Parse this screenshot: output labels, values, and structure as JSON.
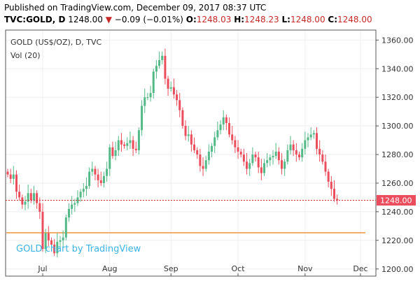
{
  "header": {
    "published": "Published on TradingView.com, December 09, 2017 08:37 UTC",
    "symbol": "TVC:GOLD, D",
    "last": "1248.00",
    "arrow": "▼",
    "change": "−0.09 (−0.01%)",
    "o_label": "O:",
    "o_value": "1248.03",
    "h_label": "H:",
    "h_value": "1248.23",
    "l_label": "L:",
    "l_value": "1248.00",
    "c_label": "C:",
    "c_value": "1248.00"
  },
  "colors": {
    "up": "#53b987",
    "down": "#eb4d5c",
    "price_line": "#c62828",
    "watermark": "#3bb3e4",
    "volume": "#f0a050"
  },
  "chart_data": {
    "type": "candlestick",
    "title": "GOLD (US$/OZ), D, TVC",
    "subtitle": "Vol (20)",
    "watermark": "GOLD chart by TradingView",
    "x_ticks": [
      "Jul",
      "Aug",
      "Sep",
      "Oct",
      "Nov",
      "Dec"
    ],
    "x_tick_index": [
      12,
      35,
      56,
      79,
      102,
      121
    ],
    "y_ticks": [
      1200.0,
      1220.0,
      1240.0,
      1260.0,
      1280.0,
      1300.0,
      1320.0,
      1340.0,
      1360.0
    ],
    "y_tick_labels": [
      "1200.00",
      "1220.00",
      "1240.00",
      "1260.00",
      "1280.00",
      "1300.00",
      "1320.00",
      "1340.00",
      "1360.00"
    ],
    "ylim": [
      1195,
      1367
    ],
    "last_price": 1248.0,
    "last_price_label": "1248.00",
    "grid": true,
    "closes": [
      1266,
      1263,
      1266,
      1254,
      1250,
      1245,
      1247,
      1253,
      1248,
      1253,
      1246,
      1240,
      1214,
      1225,
      1220,
      1217,
      1211,
      1219,
      1220,
      1222,
      1236,
      1242,
      1245,
      1246,
      1250,
      1254,
      1256,
      1258,
      1268,
      1270,
      1266,
      1262,
      1260,
      1265,
      1270,
      1285,
      1279,
      1283,
      1290,
      1287,
      1286,
      1288,
      1290,
      1284,
      1283,
      1297,
      1314,
      1320,
      1320,
      1323,
      1338,
      1342,
      1346,
      1349,
      1333,
      1326,
      1327,
      1322,
      1318,
      1311,
      1300,
      1293,
      1294,
      1287,
      1283,
      1280,
      1272,
      1270,
      1276,
      1282,
      1286,
      1292,
      1297,
      1301,
      1306,
      1302,
      1294,
      1290,
      1285,
      1282,
      1280,
      1275,
      1270,
      1274,
      1280,
      1278,
      1271,
      1267,
      1274,
      1276,
      1278,
      1279,
      1282,
      1276,
      1270,
      1275,
      1283,
      1287,
      1283,
      1280,
      1278,
      1284,
      1290,
      1292,
      1294,
      1295,
      1284,
      1280,
      1275,
      1268,
      1261,
      1256,
      1249,
      1248
    ]
  }
}
